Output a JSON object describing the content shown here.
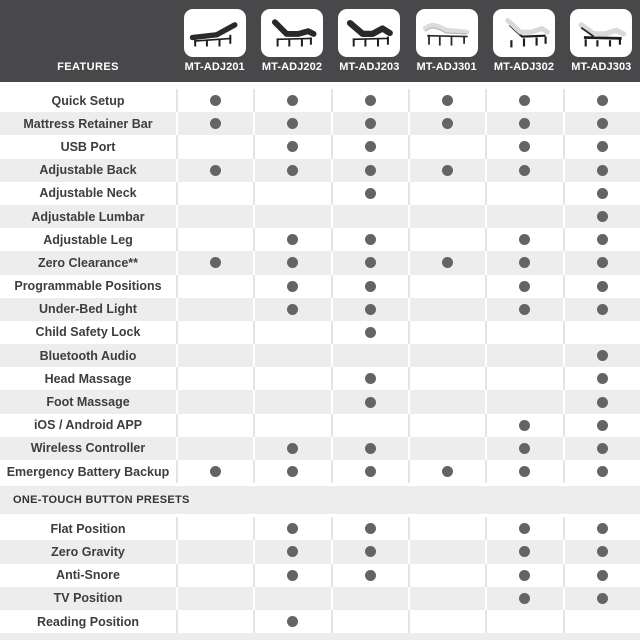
{
  "colors": {
    "header_bg": "#48484a",
    "stripe": "#ededee",
    "dot": "#646466",
    "divider_on_white": "#e4e4e4",
    "divider_on_gray": "#ffffff",
    "label_text": "#3d3d3f"
  },
  "header": {
    "features_label": "FEATURES",
    "models": [
      {
        "name": "MT-ADJ201",
        "icon": "bed-adj201-icon"
      },
      {
        "name": "MT-ADJ202",
        "icon": "bed-adj202-icon"
      },
      {
        "name": "MT-ADJ203",
        "icon": "bed-adj203-icon"
      },
      {
        "name": "MT-ADJ301",
        "icon": "bed-adj301-icon"
      },
      {
        "name": "MT-ADJ302",
        "icon": "bed-adj302-icon"
      },
      {
        "name": "MT-ADJ303",
        "icon": "bed-adj303-icon"
      }
    ]
  },
  "table": {
    "columns": [
      "MT-ADJ201",
      "MT-ADJ202",
      "MT-ADJ203",
      "MT-ADJ301",
      "MT-ADJ302",
      "MT-ADJ303"
    ],
    "rows": [
      {
        "type": "feature",
        "label": "Quick Setup",
        "dots": [
          1,
          1,
          1,
          1,
          1,
          1
        ]
      },
      {
        "type": "feature",
        "label": "Mattress Retainer Bar",
        "dots": [
          1,
          1,
          1,
          1,
          1,
          1
        ]
      },
      {
        "type": "feature",
        "label": "USB Port",
        "dots": [
          0,
          1,
          1,
          0,
          1,
          1
        ]
      },
      {
        "type": "feature",
        "label": "Adjustable Back",
        "dots": [
          1,
          1,
          1,
          1,
          1,
          1
        ]
      },
      {
        "type": "feature",
        "label": "Adjustable Neck",
        "dots": [
          0,
          0,
          1,
          0,
          0,
          1
        ]
      },
      {
        "type": "feature",
        "label": "Adjustable Lumbar",
        "dots": [
          0,
          0,
          0,
          0,
          0,
          1
        ]
      },
      {
        "type": "feature",
        "label": "Adjustable Leg",
        "dots": [
          0,
          1,
          1,
          0,
          1,
          1
        ]
      },
      {
        "type": "feature",
        "label": "Zero Clearance**",
        "dots": [
          1,
          1,
          1,
          1,
          1,
          1
        ]
      },
      {
        "type": "feature",
        "label": "Programmable Positions",
        "dots": [
          0,
          1,
          1,
          0,
          1,
          1
        ]
      },
      {
        "type": "feature",
        "label": "Under-Bed Light",
        "dots": [
          0,
          1,
          1,
          0,
          1,
          1
        ]
      },
      {
        "type": "feature",
        "label": "Child Safety Lock",
        "dots": [
          0,
          0,
          1,
          0,
          0,
          0
        ]
      },
      {
        "type": "feature",
        "label": "Bluetooth Audio",
        "dots": [
          0,
          0,
          0,
          0,
          0,
          1
        ]
      },
      {
        "type": "feature",
        "label": "Head Massage",
        "dots": [
          0,
          0,
          1,
          0,
          0,
          1
        ]
      },
      {
        "type": "feature",
        "label": "Foot Massage",
        "dots": [
          0,
          0,
          1,
          0,
          0,
          1
        ]
      },
      {
        "type": "feature",
        "label": "iOS / Android APP",
        "dots": [
          0,
          0,
          0,
          0,
          1,
          1
        ]
      },
      {
        "type": "feature",
        "label": "Wireless Controller",
        "dots": [
          0,
          1,
          1,
          0,
          1,
          1
        ]
      },
      {
        "type": "feature",
        "label": "Emergency Battery Backup",
        "dots": [
          1,
          1,
          1,
          1,
          1,
          1
        ]
      },
      {
        "type": "section",
        "label": "ONE-TOUCH BUTTON PRESETS"
      },
      {
        "type": "feature",
        "label": "Flat Position",
        "dots": [
          0,
          1,
          1,
          0,
          1,
          1
        ]
      },
      {
        "type": "feature",
        "label": "Zero Gravity",
        "dots": [
          0,
          1,
          1,
          0,
          1,
          1
        ]
      },
      {
        "type": "feature",
        "label": "Anti-Snore",
        "dots": [
          0,
          1,
          1,
          0,
          1,
          1
        ]
      },
      {
        "type": "feature",
        "label": "TV Position",
        "dots": [
          0,
          0,
          0,
          0,
          1,
          1
        ]
      },
      {
        "type": "feature",
        "label": "Reading Position",
        "dots": [
          0,
          1,
          0,
          0,
          0,
          0
        ]
      }
    ]
  }
}
